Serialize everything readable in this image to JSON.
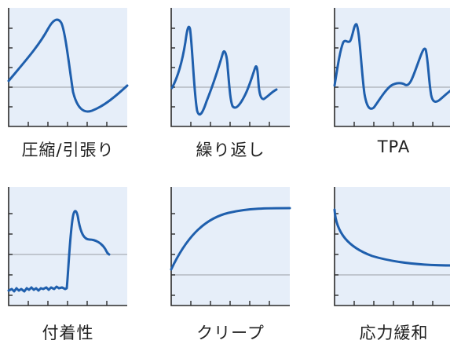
{
  "colors": {
    "panel": "#e6eef9",
    "axis": "#2a2a2a",
    "baseline": "#a9aeb6",
    "curve": "#1f5fad"
  },
  "panels": [
    {
      "id": "compression-tension",
      "label": "圧縮/引張り",
      "icon": "compression-tension-waveform"
    },
    {
      "id": "cyclic",
      "label": "繰り返し",
      "icon": "cyclic-waveform"
    },
    {
      "id": "tpa",
      "label": "TPA",
      "icon": "tpa-waveform"
    },
    {
      "id": "adhesion",
      "label": "付着性",
      "icon": "adhesion-waveform"
    },
    {
      "id": "creep",
      "label": "クリープ",
      "icon": "creep-curve"
    },
    {
      "id": "relaxation",
      "label": "応力緩和",
      "icon": "stress-relaxation-curve"
    }
  ]
}
